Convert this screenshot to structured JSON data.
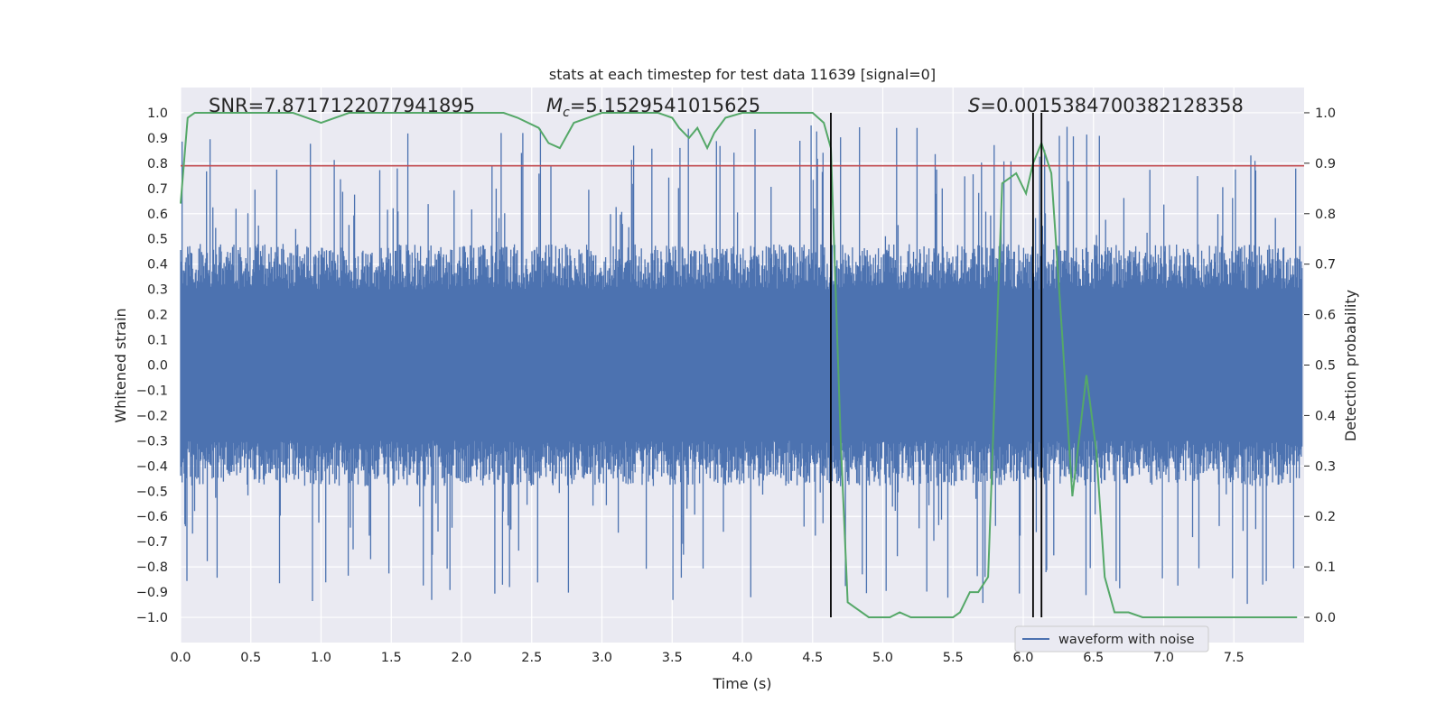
{
  "chart_data": {
    "type": "line",
    "title": "stats at each timestep for test data 11639 [signal=0]",
    "xlabel": "Time (s)",
    "ylabel": "Whitened strain",
    "y2label": "Detection probability",
    "xlim": [
      0.0,
      8.0
    ],
    "ylim": [
      -1.1,
      1.1
    ],
    "y2lim": [
      -0.05,
      1.05
    ],
    "xticks": [
      "0.0",
      "0.5",
      "1.0",
      "1.5",
      "2.0",
      "2.5",
      "3.0",
      "3.5",
      "4.0",
      "4.5",
      "5.0",
      "5.5",
      "6.0",
      "6.5",
      "7.0",
      "7.5"
    ],
    "yticks": [
      "1.0",
      "0.9",
      "0.8",
      "0.7",
      "0.6",
      "0.5",
      "0.4",
      "0.3",
      "0.2",
      "0.1",
      "0.0",
      "−0.1",
      "−0.2",
      "−0.3",
      "−0.4",
      "−0.5",
      "−0.6",
      "−0.7",
      "−0.8",
      "−0.9",
      "−1.0"
    ],
    "y2ticks": [
      "1.0",
      "0.9",
      "0.8",
      "0.7",
      "0.6",
      "0.5",
      "0.4",
      "0.3",
      "0.2",
      "0.1",
      "0.0"
    ],
    "annotations": {
      "snr": "SNR=7.871712207794 1895",
      "mc_symbol": "M",
      "mc_sub": "c",
      "mc_value": "=5.1529541015625",
      "s_symbol": "S",
      "s_value": "=0.0015384700382128358"
    },
    "legend": {
      "label": "waveform with noise",
      "position": "lower-center-right"
    },
    "threshold": {
      "value": 0.79,
      "color": "#c44e52"
    },
    "vertical_lines": [
      4.63,
      6.07,
      6.13
    ],
    "waveform": {
      "name": "waveform with noise",
      "color": "#4c72b0",
      "n_samples": 1600,
      "band": 0.4,
      "description": "whitened noisy strain filling roughly -0.45 to 0.45 with spikes up to about +/-1.0"
    },
    "detection_probability": {
      "name": "Detection probability",
      "color": "#55a868",
      "x": [
        0.0,
        0.05,
        0.1,
        0.2,
        0.4,
        0.8,
        1.0,
        1.2,
        1.5,
        2.0,
        2.3,
        2.4,
        2.55,
        2.62,
        2.7,
        2.8,
        3.0,
        3.2,
        3.4,
        3.5,
        3.55,
        3.62,
        3.68,
        3.75,
        3.8,
        3.88,
        4.0,
        4.5,
        4.58,
        4.63,
        4.7,
        4.75,
        4.8,
        4.9,
        4.95,
        5.05,
        5.12,
        5.2,
        5.3,
        5.4,
        5.5,
        5.55,
        5.62,
        5.68,
        5.75,
        5.85,
        5.95,
        6.02,
        6.07,
        6.13,
        6.2,
        6.28,
        6.35,
        6.45,
        6.52,
        6.58,
        6.65,
        6.75,
        6.85,
        7.0,
        7.5,
        7.85,
        7.95
      ],
      "values": [
        0.82,
        0.99,
        1.0,
        1.0,
        1.0,
        1.0,
        0.98,
        1.0,
        1.0,
        1.0,
        1.0,
        0.99,
        0.97,
        0.94,
        0.93,
        0.98,
        1.0,
        1.0,
        1.0,
        0.99,
        0.97,
        0.95,
        0.97,
        0.93,
        0.96,
        0.99,
        1.0,
        1.0,
        0.98,
        0.93,
        0.35,
        0.03,
        0.02,
        0.0,
        0.0,
        0.0,
        0.01,
        0.0,
        0.0,
        0.0,
        0.0,
        0.01,
        0.05,
        0.05,
        0.08,
        0.86,
        0.88,
        0.84,
        0.9,
        0.94,
        0.88,
        0.55,
        0.24,
        0.48,
        0.33,
        0.08,
        0.01,
        0.01,
        0.0,
        0.0,
        0.0,
        0.0,
        0.0
      ]
    }
  }
}
